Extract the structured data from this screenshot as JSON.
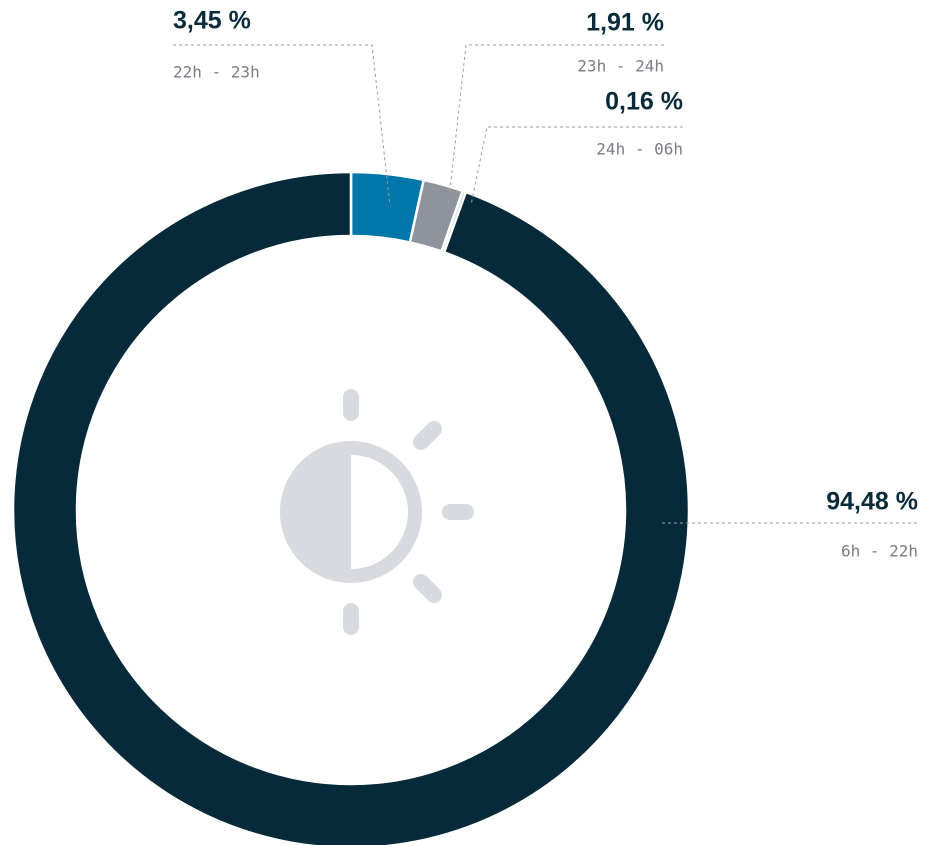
{
  "chart_data": {
    "type": "pie",
    "donut": true,
    "categories": [
      "22h - 23h",
      "23h - 24h",
      "24h - 06h",
      "6h - 22h"
    ],
    "values": [
      3.45,
      1.91,
      0.16,
      94.48
    ],
    "value_labels": [
      "3,45 %",
      "1,91 %",
      "0,16 %",
      "94,48 %"
    ],
    "colors": [
      "#0077a8",
      "#8e939e",
      "#c4c7ce",
      "#072a3a"
    ]
  }
}
